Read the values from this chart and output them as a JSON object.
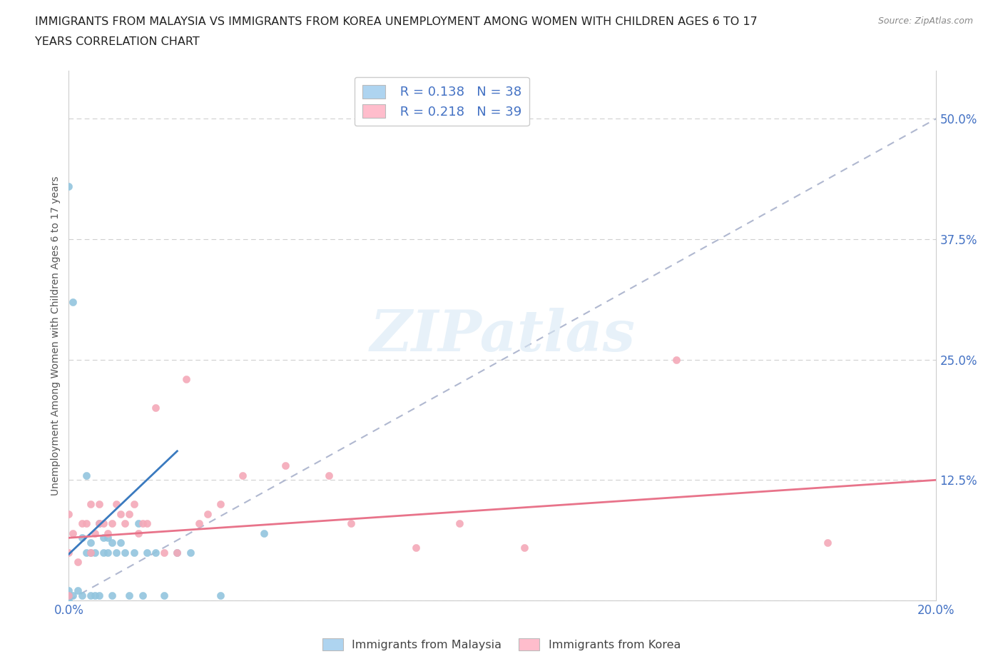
{
  "title_line1": "IMMIGRANTS FROM MALAYSIA VS IMMIGRANTS FROM KOREA UNEMPLOYMENT AMONG WOMEN WITH CHILDREN AGES 6 TO 17",
  "title_line2": "YEARS CORRELATION CHART",
  "source": "Source: ZipAtlas.com",
  "ylabel": "Unemployment Among Women with Children Ages 6 to 17 years",
  "xlim": [
    0.0,
    0.2
  ],
  "ylim": [
    0.0,
    0.55
  ],
  "y_ticks": [
    0.0,
    0.125,
    0.25,
    0.375,
    0.5
  ],
  "y_tick_labels": [
    "",
    "12.5%",
    "25.0%",
    "37.5%",
    "50.0%"
  ],
  "malaysia_scatter_color": "#92c5de",
  "korea_scatter_color": "#f4a9b8",
  "malaysia_trend_color": "#3a7abf",
  "korea_trend_color": "#e8738a",
  "ref_line_color": "#b0b8d0",
  "R_malaysia": 0.138,
  "N_malaysia": 38,
  "R_korea": 0.218,
  "N_korea": 39,
  "legend_label_malaysia": "Immigrants from Malaysia",
  "legend_label_korea": "Immigrants from Korea",
  "watermark": "ZIPatlas",
  "malaysia_x": [
    0.0,
    0.0,
    0.0,
    0.0,
    0.001,
    0.001,
    0.002,
    0.003,
    0.003,
    0.004,
    0.004,
    0.005,
    0.005,
    0.005,
    0.006,
    0.006,
    0.007,
    0.007,
    0.008,
    0.008,
    0.009,
    0.009,
    0.01,
    0.01,
    0.011,
    0.012,
    0.013,
    0.014,
    0.015,
    0.016,
    0.017,
    0.018,
    0.02,
    0.022,
    0.025,
    0.028,
    0.035,
    0.045
  ],
  "malaysia_y": [
    0.0,
    0.005,
    0.01,
    0.43,
    0.005,
    0.31,
    0.01,
    0.005,
    0.065,
    0.05,
    0.13,
    0.005,
    0.05,
    0.06,
    0.005,
    0.05,
    0.005,
    0.08,
    0.05,
    0.065,
    0.05,
    0.065,
    0.005,
    0.06,
    0.05,
    0.06,
    0.05,
    0.005,
    0.05,
    0.08,
    0.005,
    0.05,
    0.05,
    0.005,
    0.05,
    0.05,
    0.005,
    0.07
  ],
  "korea_x": [
    0.0,
    0.0,
    0.0,
    0.001,
    0.002,
    0.003,
    0.004,
    0.005,
    0.005,
    0.006,
    0.007,
    0.007,
    0.008,
    0.009,
    0.01,
    0.011,
    0.012,
    0.013,
    0.014,
    0.015,
    0.016,
    0.017,
    0.018,
    0.02,
    0.022,
    0.025,
    0.027,
    0.03,
    0.032,
    0.035,
    0.04,
    0.05,
    0.06,
    0.065,
    0.08,
    0.09,
    0.105,
    0.14,
    0.175
  ],
  "korea_y": [
    0.005,
    0.05,
    0.09,
    0.07,
    0.04,
    0.08,
    0.08,
    0.05,
    0.1,
    0.07,
    0.08,
    0.1,
    0.08,
    0.07,
    0.08,
    0.1,
    0.09,
    0.08,
    0.09,
    0.1,
    0.07,
    0.08,
    0.08,
    0.2,
    0.05,
    0.05,
    0.23,
    0.08,
    0.09,
    0.1,
    0.13,
    0.14,
    0.13,
    0.08,
    0.055,
    0.08,
    0.055,
    0.25,
    0.06
  ],
  "malaysia_trend_x": [
    0.0,
    0.025
  ],
  "malaysia_trend_y_start": 0.048,
  "malaysia_trend_y_end": 0.155,
  "korea_trend_y_start": 0.065,
  "korea_trend_y_end": 0.125
}
